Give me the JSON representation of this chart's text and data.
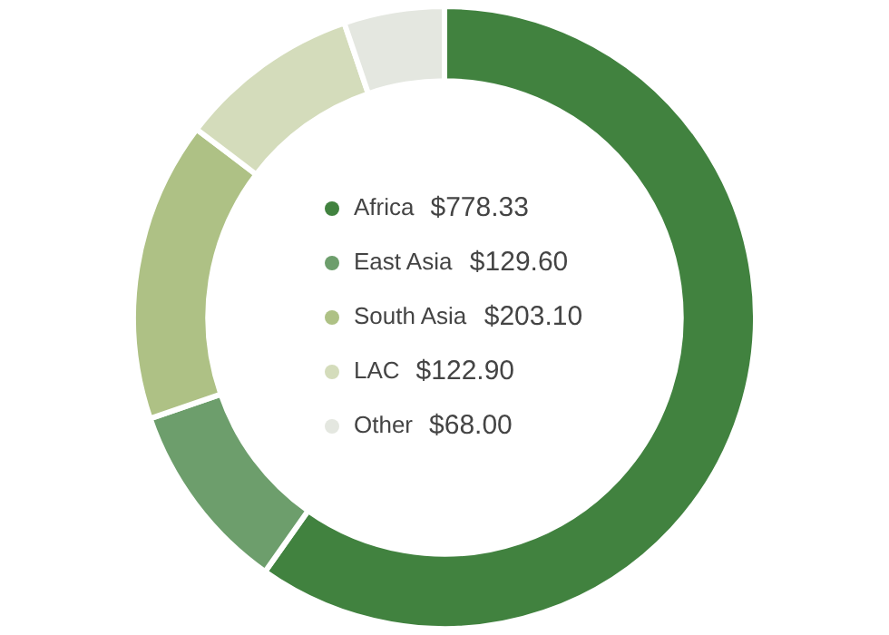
{
  "chart_data": {
    "type": "donut",
    "categories": [
      "Africa",
      "East Asia",
      "South Asia",
      "LAC",
      "Other"
    ],
    "values": [
      778.33,
      129.6,
      203.1,
      122.9,
      68.0
    ],
    "value_labels": [
      "$778.33",
      "$129.60",
      "$203.10",
      "$122.90",
      "$68.00"
    ],
    "colors": [
      "#41823f",
      "#6d9e6c",
      "#aec185",
      "#d4dcbb",
      "#e4e7e0"
    ],
    "legend": "center"
  }
}
